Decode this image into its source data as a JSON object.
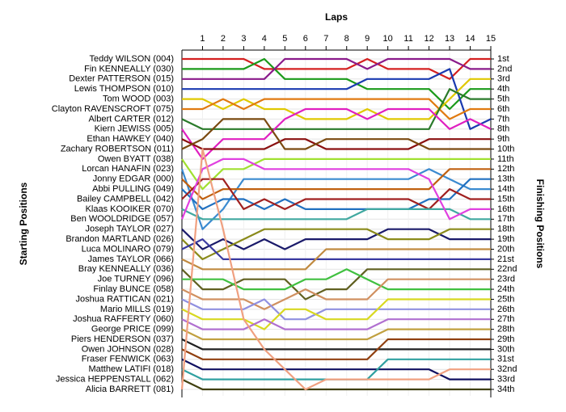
{
  "chart_data": {
    "type": "lap",
    "title": "Laps",
    "y_label": "Starting Positions",
    "y2_label": "Finishing Positions",
    "x": [
      0,
      1,
      2,
      3,
      4,
      5,
      6,
      7,
      8,
      9,
      10,
      11,
      12,
      13,
      14,
      15
    ],
    "xlim": [
      0,
      15
    ],
    "xticks": [
      1,
      2,
      3,
      4,
      5,
      6,
      7,
      8,
      9,
      10,
      11,
      12,
      13,
      14,
      15
    ],
    "ylim": [
      1,
      34
    ],
    "inverted": true,
    "grid": true,
    "y2ticks": [
      {
        "value": 1,
        "label": "1st"
      },
      {
        "value": 2,
        "label": "2nd"
      },
      {
        "value": 3,
        "label": "3rd"
      },
      {
        "value": 4,
        "label": "4th"
      },
      {
        "value": 5,
        "label": "5th"
      },
      {
        "value": 6,
        "label": "6th"
      },
      {
        "value": 7,
        "label": "7th"
      },
      {
        "value": 8,
        "label": "8th"
      },
      {
        "value": 9,
        "label": "9th"
      },
      {
        "value": 10,
        "label": "10th"
      },
      {
        "value": 11,
        "label": "11th"
      },
      {
        "value": 12,
        "label": "12th"
      },
      {
        "value": 13,
        "label": "13th"
      },
      {
        "value": 14,
        "label": "14th"
      },
      {
        "value": 15,
        "label": "15th"
      },
      {
        "value": 16,
        "label": "16th"
      },
      {
        "value": 17,
        "label": "17th"
      },
      {
        "value": 18,
        "label": "18th"
      },
      {
        "value": 19,
        "label": "19th"
      },
      {
        "value": 20,
        "label": "20th"
      },
      {
        "value": 21,
        "label": "21st"
      },
      {
        "value": 22,
        "label": "22nd"
      },
      {
        "value": 23,
        "label": "23rd"
      },
      {
        "value": 24,
        "label": "24th"
      },
      {
        "value": 25,
        "label": "25th"
      },
      {
        "value": 26,
        "label": "26th"
      },
      {
        "value": 27,
        "label": "27th"
      },
      {
        "value": 28,
        "label": "28th"
      },
      {
        "value": 29,
        "label": "29th"
      },
      {
        "value": 30,
        "label": "30th"
      },
      {
        "value": 31,
        "label": "31st"
      },
      {
        "value": 32,
        "label": "32nd"
      },
      {
        "value": 33,
        "label": "33rd"
      },
      {
        "value": 34,
        "label": "34th"
      }
    ],
    "series": [
      {
        "name": "Teddy WILSON (004)",
        "color": "#d42020",
        "values": [
          1,
          1,
          1,
          1,
          2,
          2,
          2,
          2,
          2,
          1,
          2,
          2,
          2,
          3,
          1,
          1
        ]
      },
      {
        "name": "Fin KENNEALLY (030)",
        "color": "#1a9a1a",
        "values": [
          2,
          2,
          2,
          2,
          1,
          3,
          3,
          3,
          3,
          4,
          4,
          4,
          4,
          6,
          4,
          4
        ]
      },
      {
        "name": "Dexter PATTERSON (015)",
        "color": "#8a1a8a",
        "values": [
          3,
          3,
          3,
          3,
          3,
          1,
          1,
          1,
          1,
          2,
          1,
          1,
          1,
          1,
          2,
          2
        ]
      },
      {
        "name": "Lewis THOMPSON (010)",
        "color": "#1a3ab0",
        "values": [
          4,
          4,
          4,
          4,
          4,
          4,
          4,
          4,
          4,
          3,
          3,
          3,
          3,
          2,
          8,
          7
        ]
      },
      {
        "name": "Tom WOOD (003)",
        "color": "#e0c800",
        "values": [
          5,
          5,
          6,
          5,
          6,
          6,
          7,
          7,
          7,
          6,
          7,
          7,
          7,
          5,
          3,
          3
        ]
      },
      {
        "name": "Clayton RAVENSCROFT (075)",
        "color": "#e07a10",
        "values": [
          6,
          6,
          5,
          6,
          5,
          5,
          5,
          5,
          5,
          5,
          5,
          5,
          5,
          7,
          6,
          6
        ]
      },
      {
        "name": "Albert CARTER (012)",
        "color": "#2a7a2a",
        "values": [
          7,
          8,
          8,
          8,
          8,
          8,
          8,
          8,
          8,
          8,
          8,
          8,
          8,
          4,
          5,
          5
        ]
      },
      {
        "name": "Kiern JEWISS (005)",
        "color": "#e020c0",
        "values": [
          8,
          11,
          9,
          9,
          9,
          7,
          6,
          6,
          6,
          7,
          6,
          6,
          6,
          8,
          7,
          8
        ]
      },
      {
        "name": "Ethan HAWKEY (040)",
        "color": "#8a1010",
        "values": [
          9,
          10,
          10,
          10,
          10,
          9,
          9,
          10,
          10,
          10,
          10,
          10,
          9,
          9,
          9,
          9
        ]
      },
      {
        "name": "Zachary ROBERTSON (011)",
        "color": "#7a4a10",
        "values": [
          10,
          9,
          7,
          7,
          7,
          10,
          10,
          9,
          9,
          9,
          9,
          9,
          10,
          10,
          10,
          10
        ]
      },
      {
        "name": "Owen BYATT (038)",
        "color": "#a0e030",
        "values": [
          11,
          14,
          12,
          12,
          11,
          11,
          11,
          11,
          11,
          11,
          11,
          11,
          11,
          11,
          11,
          11
        ]
      },
      {
        "name": "Lorcan HANAFIN (023)",
        "color": "#3a8ad0",
        "values": [
          12,
          18,
          16,
          13,
          13,
          13,
          13,
          13,
          13,
          13,
          13,
          13,
          12,
          13,
          14,
          14
        ]
      },
      {
        "name": "Jonny EDGAR (000)",
        "color": "#c06010",
        "values": [
          13,
          15,
          14,
          14,
          14,
          14,
          14,
          14,
          14,
          14,
          14,
          14,
          14,
          12,
          12,
          12
        ]
      },
      {
        "name": "Abbi PULLING (049)",
        "color": "#2070c0",
        "values": [
          14,
          16,
          15,
          15,
          16,
          15,
          16,
          16,
          16,
          16,
          16,
          16,
          15,
          15,
          13,
          13
        ]
      },
      {
        "name": "Bailey CAMPBELL (042)",
        "color": "#a02020",
        "values": [
          15,
          13,
          13,
          16,
          15,
          16,
          15,
          15,
          15,
          15,
          15,
          15,
          16,
          14,
          15,
          15
        ]
      },
      {
        "name": "Klaas KOOIKER (070)",
        "color": "#40a8a0",
        "values": [
          16,
          17,
          17,
          17,
          17,
          17,
          17,
          17,
          17,
          16,
          16,
          16,
          16,
          16,
          17,
          17
        ]
      },
      {
        "name": "Ben WOOLDRIDGE (057)",
        "color": "#e040e0",
        "values": [
          17,
          12,
          11,
          11,
          12,
          12,
          12,
          12,
          12,
          12,
          12,
          12,
          13,
          17,
          16,
          16
        ]
      },
      {
        "name": "Joseph TAYLOR (027)",
        "color": "#1a1a6a",
        "values": [
          18,
          20,
          19,
          20,
          19,
          20,
          19,
          19,
          19,
          19,
          18,
          18,
          18,
          19,
          19,
          19
        ]
      },
      {
        "name": "Brandon MARTLAND (026)",
        "color": "#8a8a1a",
        "values": [
          19,
          21,
          20,
          19,
          18,
          18,
          18,
          18,
          18,
          18,
          19,
          19,
          19,
          18,
          18,
          18
        ]
      },
      {
        "name": "Luca MOLINARO (079)",
        "color": "#3a3aa0",
        "values": [
          20,
          19,
          21,
          21,
          21,
          21,
          21,
          21,
          21,
          21,
          21,
          21,
          21,
          21,
          21,
          21
        ]
      },
      {
        "name": "James TAYLOR (066)",
        "color": "#c08a40",
        "values": [
          21,
          22,
          22,
          22,
          22,
          22,
          22,
          20,
          20,
          20,
          20,
          20,
          20,
          20,
          20,
          20
        ]
      },
      {
        "name": "Bray KENNEALLY (036)",
        "color": "#606020",
        "values": [
          22,
          24,
          24,
          23,
          23,
          23,
          25,
          24,
          24,
          22,
          22,
          22,
          22,
          22,
          22,
          22
        ]
      },
      {
        "name": "Joe TURNEY (096)",
        "color": "#40c040",
        "values": [
          23,
          23,
          23,
          24,
          24,
          24,
          23,
          23,
          22,
          23,
          24,
          24,
          24,
          24,
          24,
          24
        ]
      },
      {
        "name": "Finlay BUNCE (058)",
        "color": "#d09060",
        "values": [
          24,
          25,
          25,
          25,
          26,
          25,
          24,
          25,
          25,
          25,
          23,
          23,
          23,
          23,
          23,
          23
        ]
      },
      {
        "name": "Joshua RATTICAN (021)",
        "color": "#9090e0",
        "values": [
          25,
          26,
          26,
          26,
          25,
          27,
          27,
          26,
          26,
          26,
          26,
          26,
          26,
          26,
          26,
          26
        ]
      },
      {
        "name": "Mario MILLS (019)",
        "color": "#d8d820",
        "values": [
          26,
          27,
          27,
          27,
          28,
          26,
          26,
          27,
          27,
          27,
          25,
          25,
          25,
          25,
          25,
          25
        ]
      },
      {
        "name": "Joshua RAFFERTY (060)",
        "color": "#b070d0",
        "values": [
          27,
          28,
          28,
          28,
          27,
          28,
          28,
          28,
          28,
          28,
          27,
          27,
          27,
          27,
          27,
          27
        ]
      },
      {
        "name": "George PRICE (099)",
        "color": "#c0a040",
        "values": [
          28,
          29,
          29,
          29,
          29,
          29,
          29,
          29,
          29,
          29,
          28,
          28,
          28,
          28,
          28,
          28
        ]
      },
      {
        "name": "Piers HENDERSON (037)",
        "color": "#202020",
        "values": [
          29,
          30,
          30,
          30,
          30,
          30,
          30,
          30,
          30,
          30,
          30,
          30,
          30,
          30,
          30,
          30
        ]
      },
      {
        "name": "Owen JOHNSON (028)",
        "color": "#904010",
        "values": [
          30,
          31,
          31,
          31,
          31,
          31,
          31,
          31,
          31,
          31,
          29,
          29,
          29,
          29,
          29,
          29
        ]
      },
      {
        "name": "Fraser FENWICK (063)",
        "color": "#101060",
        "values": [
          31,
          32,
          32,
          32,
          32,
          32,
          32,
          32,
          32,
          32,
          32,
          32,
          32,
          33,
          33,
          33
        ]
      },
      {
        "name": "Matthew LATIFI (018)",
        "color": "#30a0a0",
        "values": [
          32,
          33,
          33,
          33,
          33,
          33,
          33,
          33,
          33,
          33,
          31,
          31,
          31,
          31,
          31,
          31
        ]
      },
      {
        "name": "Jessica HEPPENSTALL (062)",
        "color": "#404010",
        "values": [
          33,
          34,
          34,
          34,
          34,
          34,
          34,
          34,
          34,
          34,
          34,
          34,
          34,
          34,
          34,
          34
        ]
      },
      {
        "name": "Alicia BARRETT (081)",
        "color": "#f0a080",
        "values": [
          34,
          10,
          18,
          27,
          30,
          32,
          34,
          33,
          33,
          33,
          33,
          33,
          33,
          32,
          32,
          32
        ]
      }
    ]
  }
}
